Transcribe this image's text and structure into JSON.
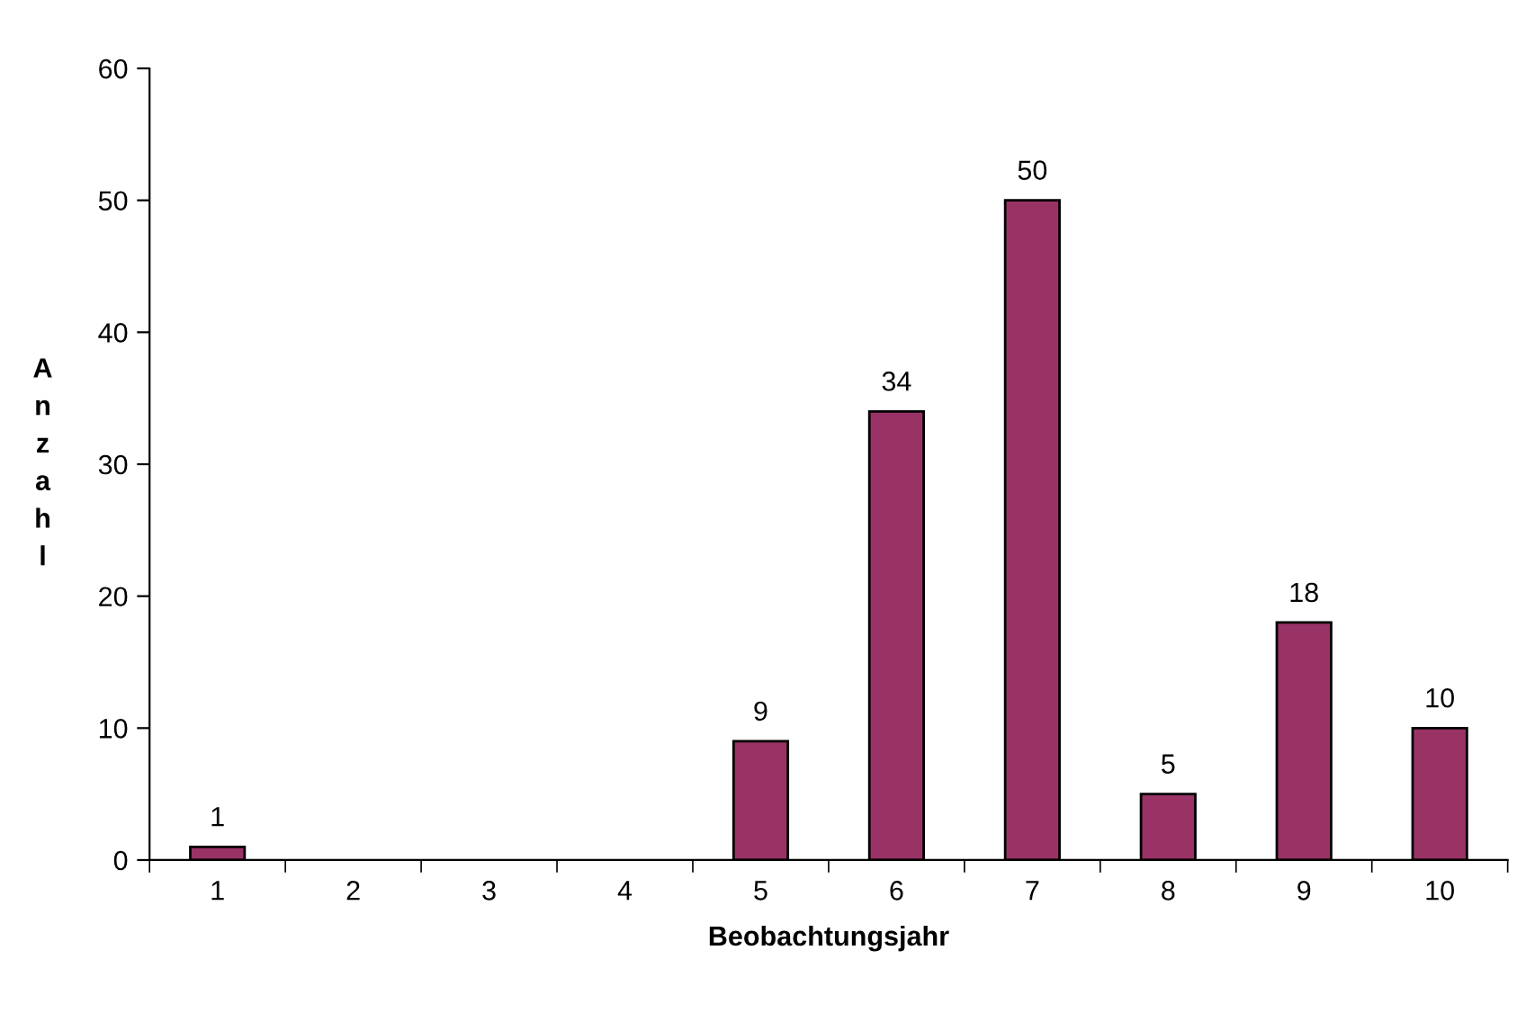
{
  "chart_data": {
    "type": "bar",
    "xlabel": "Beobachtungsjahr",
    "ylabel": "Anzahl",
    "categories": [
      "1",
      "2",
      "3",
      "4",
      "5",
      "6",
      "7",
      "8",
      "9",
      "10"
    ],
    "values": [
      1,
      0,
      0,
      0,
      9,
      34,
      50,
      5,
      18,
      10
    ],
    "value_labels": [
      "1",
      null,
      null,
      null,
      "9",
      "34",
      "50",
      "5",
      "18",
      "10"
    ],
    "color": "#993366",
    "ylim": [
      0,
      60
    ],
    "yticks": [
      0,
      10,
      20,
      30,
      40,
      50,
      60
    ],
    "grid": false,
    "legend": false
  }
}
